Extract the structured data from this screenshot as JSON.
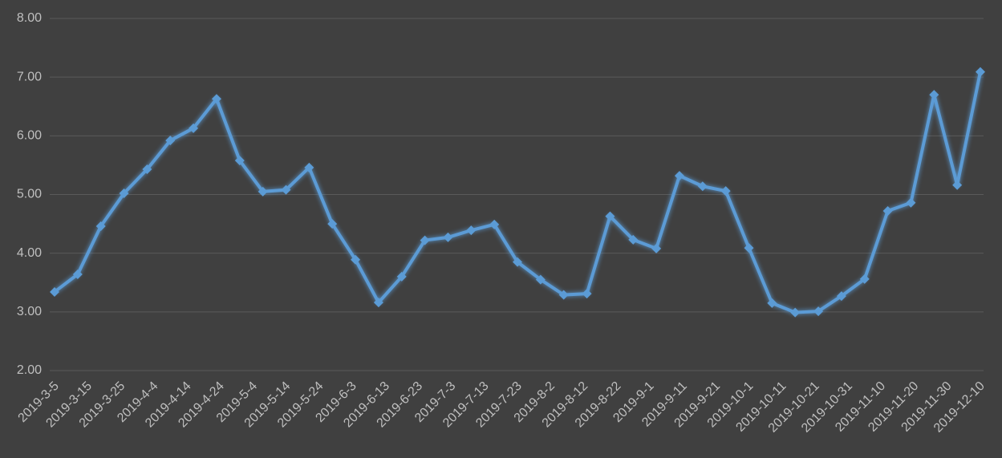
{
  "chart_data": {
    "type": "line",
    "x": [
      "2019-3-5",
      "2019-3-12",
      "2019-3-19",
      "2019-3-26",
      "2019-4-2",
      "2019-4-9",
      "2019-4-16",
      "2019-4-23",
      "2019-4-30",
      "2019-5-7",
      "2019-5-14",
      "2019-5-21",
      "2019-5-28",
      "2019-6-4",
      "2019-6-11",
      "2019-6-18",
      "2019-6-25",
      "2019-7-2",
      "2019-7-9",
      "2019-7-16",
      "2019-7-23",
      "2019-7-30",
      "2019-8-6",
      "2019-8-13",
      "2019-8-20",
      "2019-8-27",
      "2019-9-3",
      "2019-9-10",
      "2019-9-17",
      "2019-9-24",
      "2019-10-1",
      "2019-10-8",
      "2019-10-15",
      "2019-10-22",
      "2019-10-29",
      "2019-11-5",
      "2019-11-12",
      "2019-11-19",
      "2019-11-26",
      "2019-12-3",
      "2019-12-10"
    ],
    "series": [
      {
        "color": "#5b9bd5",
        "values": [
          3.34,
          3.64,
          4.46,
          5.02,
          5.43,
          5.92,
          6.13,
          6.63,
          5.58,
          5.05,
          5.08,
          5.46,
          4.5,
          3.89,
          3.16,
          3.6,
          4.22,
          4.27,
          4.39,
          4.49,
          3.85,
          3.55,
          3.29,
          3.31,
          4.63,
          4.23,
          4.08,
          5.32,
          5.14,
          5.06,
          4.09,
          3.15,
          2.99,
          3.01,
          3.27,
          3.56,
          4.72,
          4.86,
          6.7,
          5.16,
          7.09
        ]
      }
    ],
    "xlim": [
      "2019-3-5",
      "2019-12-10"
    ],
    "xticks": [
      "2019-3-5",
      "2019-3-15",
      "2019-3-25",
      "2019-4-4",
      "2019-4-14",
      "2019-4-24",
      "2019-5-4",
      "2019-5-14",
      "2019-5-24",
      "2019-6-3",
      "2019-6-13",
      "2019-6-23",
      "2019-7-3",
      "2019-7-13",
      "2019-7-23",
      "2019-8-2",
      "2019-8-12",
      "2019-8-22",
      "2019-9-1",
      "2019-9-11",
      "2019-9-21",
      "2019-10-1",
      "2019-10-11",
      "2019-10-21",
      "2019-10-31",
      "2019-11-10",
      "2019-11-20",
      "2019-11-30",
      "2019-12-10"
    ],
    "ylim": [
      2,
      8
    ],
    "yticks": [
      {
        "value": 2,
        "label": "2.00"
      },
      {
        "value": 3,
        "label": "3.00"
      },
      {
        "value": 4,
        "label": "4.00"
      },
      {
        "value": 5,
        "label": "5.00"
      },
      {
        "value": 6,
        "label": "6.00"
      },
      {
        "value": 7,
        "label": "7.00"
      },
      {
        "value": 8,
        "label": "8.00"
      }
    ],
    "grid": true
  }
}
